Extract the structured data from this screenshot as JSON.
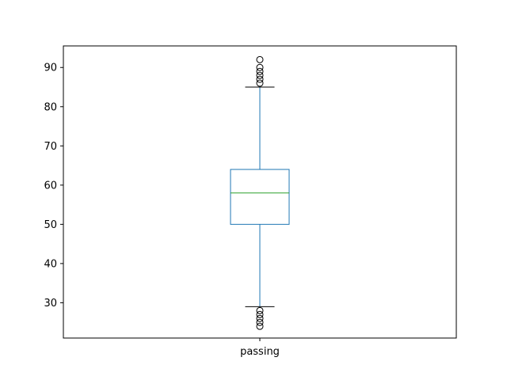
{
  "chart_data": {
    "type": "box",
    "title": "",
    "xlabel": "",
    "ylabel": "",
    "categories": [
      "passing"
    ],
    "ylim": [
      21,
      95.5
    ],
    "yticks": [
      30,
      40,
      50,
      60,
      70,
      80,
      90
    ],
    "ytick_labels": [
      "30",
      "40",
      "50",
      "60",
      "70",
      "80",
      "90"
    ],
    "grid": false,
    "boxes": [
      {
        "category": "passing",
        "whisker_low": 29,
        "q1": 50,
        "median": 58,
        "q3": 64,
        "whisker_high": 85,
        "outliers_low": [
          24,
          25,
          26,
          27,
          28
        ],
        "outliers_high": [
          86,
          87,
          88,
          89,
          90,
          92
        ]
      }
    ],
    "colors": {
      "box": "#1f77b4",
      "whisker": "#1f77b4",
      "median": "#2ca02c",
      "cap": "#000000",
      "outlier": "#000000",
      "axes": "#000000"
    }
  }
}
